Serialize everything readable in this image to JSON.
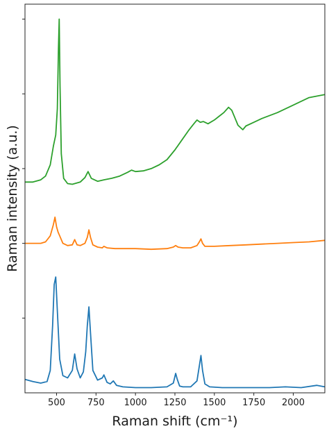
{
  "chart_data": {
    "type": "line",
    "title": "",
    "xlabel": "Raman shift (cm⁻¹)",
    "ylabel": "Raman intensity (a.u.)",
    "xlim": [
      300,
      2200
    ],
    "ylim": [
      0,
      5.2
    ],
    "x_ticks": [
      500,
      750,
      1000,
      1250,
      1500,
      1750,
      2000
    ],
    "x_tick_labels": [
      "500",
      "750",
      "1000",
      "1250",
      "1500",
      "1750",
      "2000"
    ],
    "y_ticks": [
      1,
      2,
      3,
      4,
      5
    ],
    "y_tick_labels_shown": false,
    "grid": false,
    "legend": "none",
    "series": [
      {
        "color": "#1f77b4",
        "x": [
          300,
          350,
          400,
          440,
          460,
          475,
          485,
          495,
          505,
          520,
          540,
          570,
          600,
          615,
          630,
          650,
          670,
          685,
          695,
          705,
          715,
          730,
          760,
          790,
          800,
          820,
          840,
          860,
          880,
          920,
          1000,
          1100,
          1200,
          1240,
          1255,
          1265,
          1280,
          1300,
          1350,
          1390,
          1405,
          1415,
          1425,
          1440,
          1470,
          1550,
          1650,
          1750,
          1850,
          1950,
          2050,
          2150,
          2200
        ],
        "values": [
          0.18,
          0.15,
          0.13,
          0.15,
          0.3,
          0.9,
          1.45,
          1.55,
          1.1,
          0.45,
          0.23,
          0.2,
          0.3,
          0.52,
          0.32,
          0.2,
          0.28,
          0.55,
          0.9,
          1.15,
          0.8,
          0.3,
          0.17,
          0.2,
          0.24,
          0.14,
          0.12,
          0.16,
          0.1,
          0.08,
          0.07,
          0.07,
          0.08,
          0.13,
          0.26,
          0.18,
          0.09,
          0.08,
          0.08,
          0.16,
          0.36,
          0.5,
          0.3,
          0.12,
          0.08,
          0.07,
          0.07,
          0.07,
          0.07,
          0.08,
          0.07,
          0.1,
          0.08
        ]
      },
      {
        "color": "#ff7f0e",
        "x": [
          300,
          350,
          400,
          430,
          460,
          480,
          490,
          500,
          510,
          520,
          540,
          570,
          600,
          615,
          630,
          650,
          680,
          695,
          705,
          715,
          730,
          760,
          790,
          800,
          820,
          870,
          1000,
          1100,
          1200,
          1240,
          1255,
          1270,
          1300,
          1350,
          1390,
          1405,
          1415,
          1425,
          1440,
          1500,
          1600,
          1700,
          1800,
          1900,
          2000,
          2100,
          2200
        ],
        "values": [
          2.0,
          2.0,
          2.0,
          2.02,
          2.1,
          2.25,
          2.35,
          2.22,
          2.15,
          2.1,
          2.0,
          1.97,
          1.98,
          2.05,
          1.98,
          1.97,
          2.0,
          2.08,
          2.18,
          2.08,
          1.98,
          1.95,
          1.94,
          1.96,
          1.94,
          1.93,
          1.93,
          1.92,
          1.93,
          1.95,
          1.97,
          1.95,
          1.94,
          1.94,
          1.97,
          2.02,
          2.06,
          2.0,
          1.96,
          1.96,
          1.97,
          1.98,
          1.99,
          2.0,
          2.01,
          2.02,
          2.04
        ]
      },
      {
        "color": "#2ca02c",
        "x": [
          300,
          350,
          400,
          430,
          460,
          480,
          495,
          505,
          512,
          517,
          522,
          530,
          545,
          570,
          600,
          650,
          680,
          700,
          720,
          760,
          800,
          850,
          900,
          950,
          975,
          1000,
          1050,
          1100,
          1150,
          1200,
          1250,
          1300,
          1340,
          1370,
          1390,
          1410,
          1430,
          1460,
          1500,
          1530,
          1560,
          1590,
          1610,
          1630,
          1650,
          1680,
          1700,
          1750,
          1800,
          1900,
          2000,
          2100,
          2200
        ],
        "values": [
          2.82,
          2.82,
          2.85,
          2.9,
          3.05,
          3.3,
          3.45,
          3.8,
          4.6,
          5.0,
          4.1,
          3.2,
          2.87,
          2.8,
          2.79,
          2.82,
          2.88,
          2.96,
          2.87,
          2.83,
          2.85,
          2.87,
          2.9,
          2.95,
          2.98,
          2.96,
          2.97,
          3.0,
          3.05,
          3.12,
          3.25,
          3.4,
          3.52,
          3.6,
          3.65,
          3.62,
          3.63,
          3.6,
          3.65,
          3.7,
          3.75,
          3.82,
          3.78,
          3.68,
          3.58,
          3.52,
          3.57,
          3.62,
          3.67,
          3.75,
          3.85,
          3.95,
          3.99
        ]
      }
    ]
  }
}
